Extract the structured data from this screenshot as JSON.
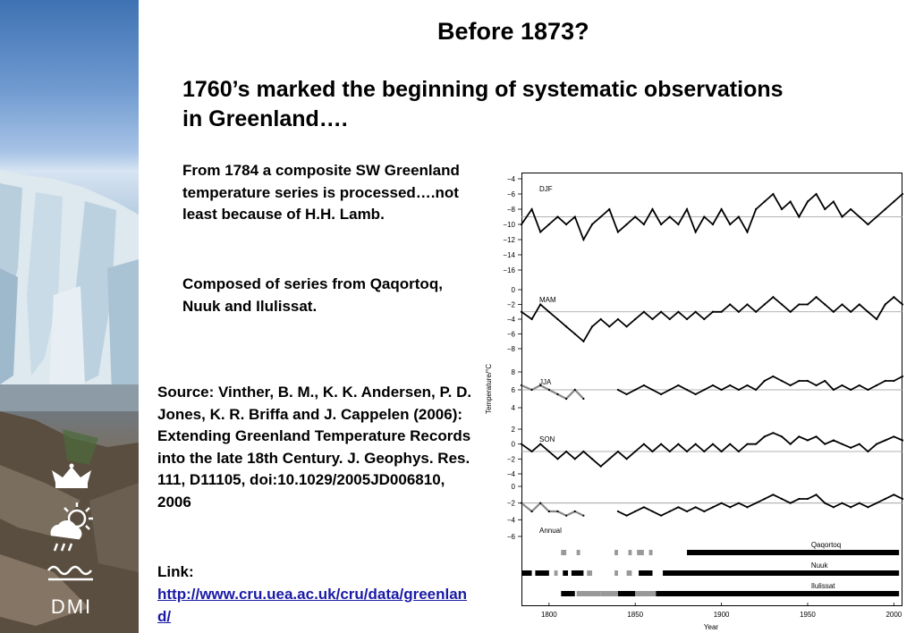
{
  "title": "Before 1873?",
  "headline": "1760’s marked the beginning of systematic observations in Greenland….",
  "paragraphs": {
    "composite": "From 1784 a composite SW Greenland temperature series is processed….not least because of H.H. Lamb.",
    "composed": "Composed of series from Qaqortoq, Nuuk and Ilulissat."
  },
  "source": {
    "text": "Source: Vinther, B. M., K. K. Andersen, P. D. Jones, K. R. Briffa and J. Cappelen (2006): Extending Greenland Temperature Records into the late 18th Century. J. Geophys. Res. 111, D11105, doi:10.1029/2005JD006810, 2006",
    "link_label": "Link:",
    "link_url": "http://www.cru.uea.ac.uk/cru/data/greenland/"
  },
  "logo": {
    "text": "DMI",
    "icons": [
      "crown-icon",
      "sun-cloud-rain-icon",
      "waves-icon"
    ]
  },
  "colors": {
    "link": "#1a1aa6",
    "series_composite": "#000000",
    "series_early": "#888888",
    "smooth": "#000000"
  },
  "chart_data": {
    "type": "line",
    "xlabel": "Year",
    "ylabel": "Temperature/°C",
    "x_ticks": [
      1800,
      1850,
      1900,
      1950,
      2000
    ],
    "xlim": [
      1784,
      2005
    ],
    "panels": [
      {
        "name": "DJF",
        "ylim": [
          -16,
          -4
        ],
        "y_ticks": [
          -4,
          -6,
          -8,
          -10,
          -12,
          -14,
          -16
        ],
        "mean": -9,
        "points": [
          [
            1784,
            -10
          ],
          [
            1790,
            -8
          ],
          [
            1795,
            -11
          ],
          [
            1800,
            -10
          ],
          [
            1805,
            -9
          ],
          [
            1810,
            -10
          ],
          [
            1815,
            -9
          ],
          [
            1820,
            -12
          ],
          [
            1825,
            -10
          ],
          [
            1830,
            -9
          ],
          [
            1835,
            -8
          ],
          [
            1840,
            -11
          ],
          [
            1845,
            -10
          ],
          [
            1850,
            -9
          ],
          [
            1855,
            -10
          ],
          [
            1860,
            -8
          ],
          [
            1865,
            -10
          ],
          [
            1870,
            -9
          ],
          [
            1875,
            -10
          ],
          [
            1880,
            -8
          ],
          [
            1885,
            -11
          ],
          [
            1890,
            -9
          ],
          [
            1895,
            -10
          ],
          [
            1900,
            -8
          ],
          [
            1905,
            -10
          ],
          [
            1910,
            -9
          ],
          [
            1915,
            -11
          ],
          [
            1920,
            -8
          ],
          [
            1925,
            -7
          ],
          [
            1930,
            -6
          ],
          [
            1935,
            -8
          ],
          [
            1940,
            -7
          ],
          [
            1945,
            -9
          ],
          [
            1950,
            -7
          ],
          [
            1955,
            -6
          ],
          [
            1960,
            -8
          ],
          [
            1965,
            -7
          ],
          [
            1970,
            -9
          ],
          [
            1975,
            -8
          ],
          [
            1980,
            -9
          ],
          [
            1985,
            -10
          ],
          [
            1990,
            -9
          ],
          [
            1995,
            -8
          ],
          [
            2000,
            -7
          ],
          [
            2005,
            -6
          ]
        ]
      },
      {
        "name": "MAM",
        "ylim": [
          -8,
          0
        ],
        "y_ticks": [
          0,
          -2,
          -4,
          -6,
          -8
        ],
        "mean": -3,
        "points": [
          [
            1784,
            -3
          ],
          [
            1790,
            -4
          ],
          [
            1795,
            -2
          ],
          [
            1800,
            -3
          ],
          [
            1805,
            -4
          ],
          [
            1810,
            -5
          ],
          [
            1815,
            -6
          ],
          [
            1820,
            -7
          ],
          [
            1825,
            -5
          ],
          [
            1830,
            -4
          ],
          [
            1835,
            -5
          ],
          [
            1840,
            -4
          ],
          [
            1845,
            -5
          ],
          [
            1850,
            -4
          ],
          [
            1855,
            -3
          ],
          [
            1860,
            -4
          ],
          [
            1865,
            -3
          ],
          [
            1870,
            -4
          ],
          [
            1875,
            -3
          ],
          [
            1880,
            -4
          ],
          [
            1885,
            -3
          ],
          [
            1890,
            -4
          ],
          [
            1895,
            -3
          ],
          [
            1900,
            -3
          ],
          [
            1905,
            -2
          ],
          [
            1910,
            -3
          ],
          [
            1915,
            -2
          ],
          [
            1920,
            -3
          ],
          [
            1925,
            -2
          ],
          [
            1930,
            -1
          ],
          [
            1935,
            -2
          ],
          [
            1940,
            -3
          ],
          [
            1945,
            -2
          ],
          [
            1950,
            -2
          ],
          [
            1955,
            -1
          ],
          [
            1960,
            -2
          ],
          [
            1965,
            -3
          ],
          [
            1970,
            -2
          ],
          [
            1975,
            -3
          ],
          [
            1980,
            -2
          ],
          [
            1985,
            -3
          ],
          [
            1990,
            -4
          ],
          [
            1995,
            -2
          ],
          [
            2000,
            -1
          ],
          [
            2005,
            -2
          ]
        ]
      },
      {
        "name": "JJA",
        "ylim": [
          4,
          8
        ],
        "y_ticks": [
          8,
          6,
          4
        ],
        "mean": 6,
        "points": [
          [
            1784,
            6.5
          ],
          [
            1790,
            6
          ],
          [
            1795,
            6.5
          ],
          [
            1800,
            6
          ],
          [
            1805,
            5.5
          ],
          [
            1810,
            5
          ],
          [
            1815,
            6
          ],
          [
            1820,
            5
          ],
          [
            1840,
            6
          ],
          [
            1845,
            5.5
          ],
          [
            1850,
            6
          ],
          [
            1855,
            6.5
          ],
          [
            1860,
            6
          ],
          [
            1865,
            5.5
          ],
          [
            1870,
            6
          ],
          [
            1875,
            6.5
          ],
          [
            1880,
            6
          ],
          [
            1885,
            5.5
          ],
          [
            1890,
            6
          ],
          [
            1895,
            6.5
          ],
          [
            1900,
            6
          ],
          [
            1905,
            6.5
          ],
          [
            1910,
            6
          ],
          [
            1915,
            6.5
          ],
          [
            1920,
            6
          ],
          [
            1925,
            7
          ],
          [
            1930,
            7.5
          ],
          [
            1935,
            7
          ],
          [
            1940,
            6.5
          ],
          [
            1945,
            7
          ],
          [
            1950,
            7
          ],
          [
            1955,
            6.5
          ],
          [
            1960,
            7
          ],
          [
            1965,
            6
          ],
          [
            1970,
            6.5
          ],
          [
            1975,
            6
          ],
          [
            1980,
            6.5
          ],
          [
            1985,
            6
          ],
          [
            1990,
            6.5
          ],
          [
            1995,
            7
          ],
          [
            2000,
            7
          ],
          [
            2005,
            7.5
          ]
        ]
      },
      {
        "name": "SON",
        "ylim": [
          -4,
          2
        ],
        "y_ticks": [
          2,
          0,
          -2,
          -4
        ],
        "mean": -1,
        "points": [
          [
            1784,
            0
          ],
          [
            1790,
            -1
          ],
          [
            1795,
            0
          ],
          [
            1800,
            -1
          ],
          [
            1805,
            -2
          ],
          [
            1810,
            -1
          ],
          [
            1815,
            -2
          ],
          [
            1820,
            -1
          ],
          [
            1825,
            -2
          ],
          [
            1830,
            -3
          ],
          [
            1835,
            -2
          ],
          [
            1840,
            -1
          ],
          [
            1845,
            -2
          ],
          [
            1850,
            -1
          ],
          [
            1855,
            0
          ],
          [
            1860,
            -1
          ],
          [
            1865,
            0
          ],
          [
            1870,
            -1
          ],
          [
            1875,
            0
          ],
          [
            1880,
            -1
          ],
          [
            1885,
            0
          ],
          [
            1890,
            -1
          ],
          [
            1895,
            0
          ],
          [
            1900,
            -1
          ],
          [
            1905,
            0
          ],
          [
            1910,
            -1
          ],
          [
            1915,
            0
          ],
          [
            1920,
            0
          ],
          [
            1925,
            1
          ],
          [
            1930,
            1.5
          ],
          [
            1935,
            1
          ],
          [
            1940,
            0
          ],
          [
            1945,
            1
          ],
          [
            1950,
            0.5
          ],
          [
            1955,
            1
          ],
          [
            1960,
            0
          ],
          [
            1965,
            0.5
          ],
          [
            1970,
            0
          ],
          [
            1975,
            -0.5
          ],
          [
            1980,
            0
          ],
          [
            1985,
            -1
          ],
          [
            1990,
            0
          ],
          [
            1995,
            0.5
          ],
          [
            2000,
            1
          ],
          [
            2005,
            0.5
          ]
        ]
      },
      {
        "name": "Annual",
        "ylim": [
          -6,
          0
        ],
        "y_ticks": [
          0,
          -2,
          -4,
          -6
        ],
        "mean": -2,
        "points": [
          [
            1784,
            -2
          ],
          [
            1790,
            -3
          ],
          [
            1795,
            -2
          ],
          [
            1800,
            -3
          ],
          [
            1805,
            -3
          ],
          [
            1810,
            -3.5
          ],
          [
            1815,
            -3
          ],
          [
            1820,
            -3.5
          ],
          [
            1840,
            -3
          ],
          [
            1845,
            -3.5
          ],
          [
            1850,
            -3
          ],
          [
            1855,
            -2.5
          ],
          [
            1860,
            -3
          ],
          [
            1865,
            -3.5
          ],
          [
            1870,
            -3
          ],
          [
            1875,
            -2.5
          ],
          [
            1880,
            -3
          ],
          [
            1885,
            -2.5
          ],
          [
            1890,
            -3
          ],
          [
            1895,
            -2.5
          ],
          [
            1900,
            -2
          ],
          [
            1905,
            -2.5
          ],
          [
            1910,
            -2
          ],
          [
            1915,
            -2.5
          ],
          [
            1920,
            -2
          ],
          [
            1925,
            -1.5
          ],
          [
            1930,
            -1
          ],
          [
            1935,
            -1.5
          ],
          [
            1940,
            -2
          ],
          [
            1945,
            -1.5
          ],
          [
            1950,
            -1.5
          ],
          [
            1955,
            -1
          ],
          [
            1960,
            -2
          ],
          [
            1965,
            -2.5
          ],
          [
            1970,
            -2
          ],
          [
            1975,
            -2.5
          ],
          [
            1980,
            -2
          ],
          [
            1985,
            -2.5
          ],
          [
            1990,
            -2
          ],
          [
            1995,
            -1.5
          ],
          [
            2000,
            -1
          ],
          [
            2005,
            -1.5
          ]
        ]
      }
    ],
    "station_coverage": [
      {
        "name": "Qaqortoq",
        "segments": [
          [
            1807,
            1810,
            "grey"
          ],
          [
            1816,
            1818,
            "grey"
          ],
          [
            1838,
            1840,
            "grey"
          ],
          [
            1846,
            1848,
            "grey"
          ],
          [
            1851,
            1855,
            "grey"
          ],
          [
            1858,
            1860,
            "grey"
          ],
          [
            1880,
            2003,
            "black"
          ]
        ]
      },
      {
        "name": "Nuuk",
        "segments": [
          [
            1784,
            1790,
            "black"
          ],
          [
            1792,
            1800,
            "black"
          ],
          [
            1803,
            1805,
            "grey"
          ],
          [
            1808,
            1811,
            "black"
          ],
          [
            1813,
            1820,
            "black"
          ],
          [
            1822,
            1825,
            "grey"
          ],
          [
            1838,
            1840,
            "grey"
          ],
          [
            1845,
            1848,
            "grey"
          ],
          [
            1852,
            1860,
            "black"
          ],
          [
            1866,
            2003,
            "black"
          ]
        ]
      },
      {
        "name": "Ilulissat",
        "segments": [
          [
            1807,
            1815,
            "black"
          ],
          [
            1816,
            1830,
            "grey"
          ],
          [
            1830,
            1840,
            "grey"
          ],
          [
            1840,
            1850,
            "black"
          ],
          [
            1850,
            1862,
            "grey"
          ],
          [
            1862,
            2003,
            "black"
          ]
        ]
      }
    ]
  }
}
